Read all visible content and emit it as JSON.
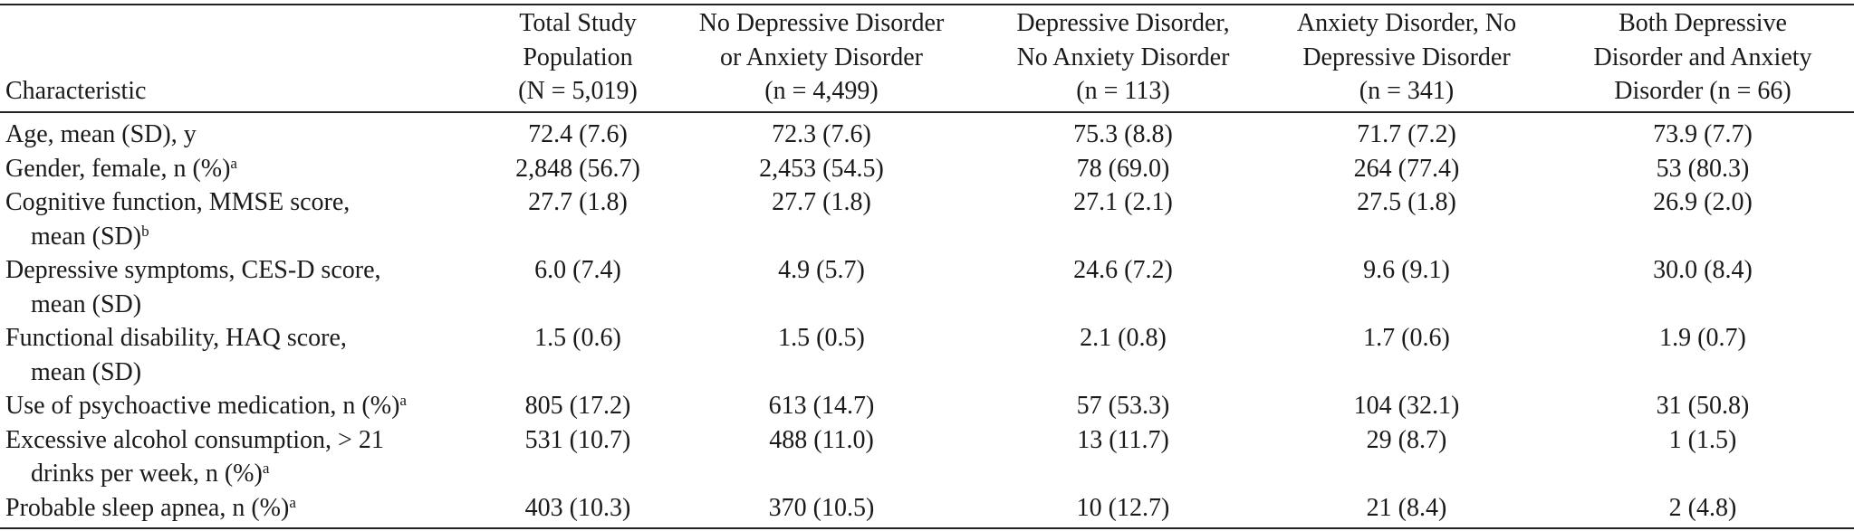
{
  "table": {
    "header": [
      {
        "lines": [
          "Characteristic"
        ]
      },
      {
        "lines": [
          "Total Study",
          "Population",
          "(N = 5,019)"
        ]
      },
      {
        "lines": [
          "No Depressive Disorder",
          "or Anxiety Disorder",
          "(n = 4,499)"
        ]
      },
      {
        "lines": [
          "Depressive Disorder,",
          "No Anxiety Disorder",
          "(n = 113)"
        ]
      },
      {
        "lines": [
          "Anxiety Disorder, No",
          "Depressive Disorder",
          "(n = 341)"
        ]
      },
      {
        "lines": [
          "Both Depressive",
          "Disorder and Anxiety",
          "Disorder (n = 66)"
        ]
      }
    ],
    "rows": [
      {
        "label": [
          "Age, mean (SD), y"
        ],
        "cells": [
          "72.4 (7.6)",
          "72.3 (7.6)",
          "75.3 (8.8)",
          "71.7 (7.2)",
          "73.9 (7.7)"
        ]
      },
      {
        "label": [
          "Gender, female, n (%)"
        ],
        "note": "a",
        "cells": [
          "2,848 (56.7)",
          "2,453 (54.5)",
          "78 (69.0)",
          "264 (77.4)",
          "53 (80.3)"
        ]
      },
      {
        "label": [
          "Cognitive function, MMSE score,",
          "mean (SD)"
        ],
        "note": "b",
        "cells": [
          "27.7 (1.8)",
          "27.7 (1.8)",
          "27.1 (2.1)",
          "27.5 (1.8)",
          "26.9 (2.0)"
        ]
      },
      {
        "label": [
          "Depressive symptoms, CES-D score,",
          "mean (SD)"
        ],
        "cells": [
          "6.0 (7.4)",
          "4.9 (5.7)",
          "24.6 (7.2)",
          "9.6 (9.1)",
          "30.0 (8.4)"
        ]
      },
      {
        "label": [
          "Functional disability, HAQ score,",
          "mean (SD)"
        ],
        "cells": [
          "1.5 (0.6)",
          "1.5 (0.5)",
          "2.1 (0.8)",
          "1.7 (0.6)",
          "1.9 (0.7)"
        ]
      },
      {
        "label": [
          "Use of psychoactive medication, n (%)"
        ],
        "note": "a",
        "cells": [
          "805 (17.2)",
          "613 (14.7)",
          "57 (53.3)",
          "104 (32.1)",
          "31 (50.8)"
        ]
      },
      {
        "label": [
          "Excessive alcohol consumption, > 21",
          "drinks per week, n (%)"
        ],
        "note": "a",
        "cells": [
          "531 (10.7)",
          "488 (11.0)",
          "13 (11.7)",
          "29 (8.7)",
          "1 (1.5)"
        ]
      },
      {
        "label": [
          "Probable sleep apnea, n (%)"
        ],
        "note": "a",
        "cells": [
          "403 (10.3)",
          "370 (10.5)",
          "10 (12.7)",
          "21 (8.4)",
          "2 (4.8)"
        ]
      }
    ]
  }
}
